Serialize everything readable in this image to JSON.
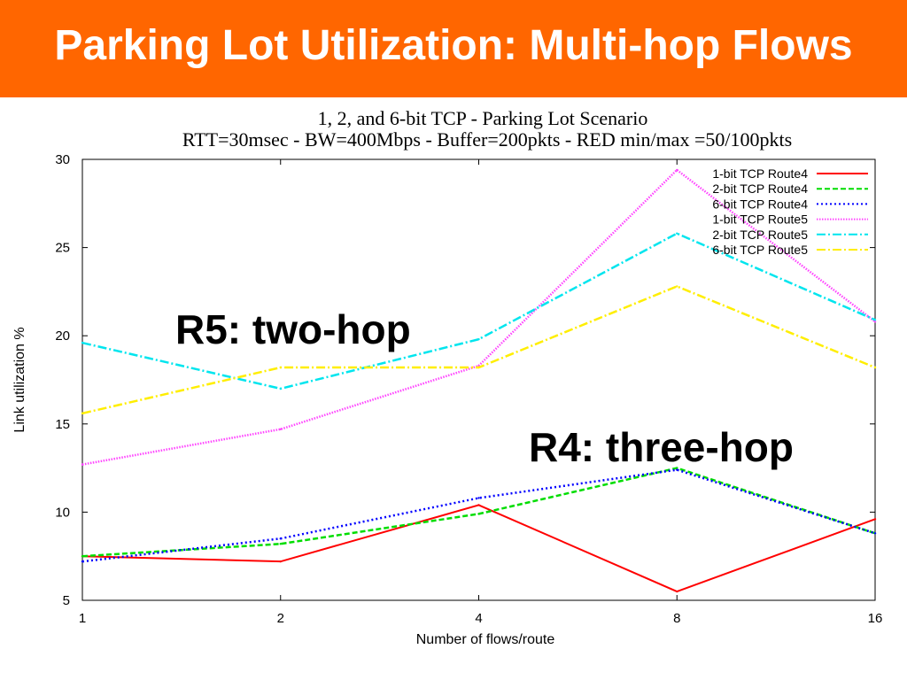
{
  "slide": {
    "title": "Parking Lot Utilization: Multi-hop Flows",
    "accent_color": "#ff6600"
  },
  "chart_data": {
    "type": "line",
    "title": "1, 2, and 6-bit TCP - Parking Lot Scenario",
    "subtitle": "RTT=30msec - BW=400Mbps - Buffer=200pkts - RED min/max =50/100pkts",
    "xlabel": "Number of flows/route",
    "ylabel": "Link utilization %",
    "categories": [
      "1",
      "2",
      "4",
      "8",
      "16"
    ],
    "ylim": [
      5,
      30
    ],
    "yticks": [
      "5",
      "10",
      "15",
      "20",
      "25",
      "30"
    ],
    "legend_position": "top-right",
    "series": [
      {
        "name": "1-bit TCP Route4",
        "color": "#ff0000",
        "dash": "solid",
        "values": [
          7.5,
          7.2,
          10.4,
          5.5,
          9.6
        ]
      },
      {
        "name": "2-bit TCP Route4",
        "color": "#00dd00",
        "dash": "dashed",
        "values": [
          7.5,
          8.2,
          9.9,
          12.5,
          8.8
        ]
      },
      {
        "name": "6-bit TCP Route4",
        "color": "#0000ff",
        "dash": "dotted",
        "values": [
          7.2,
          8.5,
          10.8,
          12.4,
          8.8
        ]
      },
      {
        "name": "1-bit TCP Route5",
        "color": "#ff44ff",
        "dash": "dotted-fine",
        "values": [
          12.7,
          14.7,
          18.3,
          29.4,
          20.8
        ]
      },
      {
        "name": "2-bit TCP Route5",
        "color": "#00e5ee",
        "dash": "dashdot",
        "values": [
          19.6,
          17.0,
          19.8,
          25.8,
          20.9
        ]
      },
      {
        "name": "6-bit TCP Route5",
        "color": "#ffee00",
        "dash": "dashdot",
        "values": [
          15.6,
          18.2,
          18.2,
          22.8,
          18.2
        ]
      }
    ],
    "annotations": [
      {
        "text": "R5: two-hop"
      },
      {
        "text": "R4: three-hop"
      }
    ]
  }
}
